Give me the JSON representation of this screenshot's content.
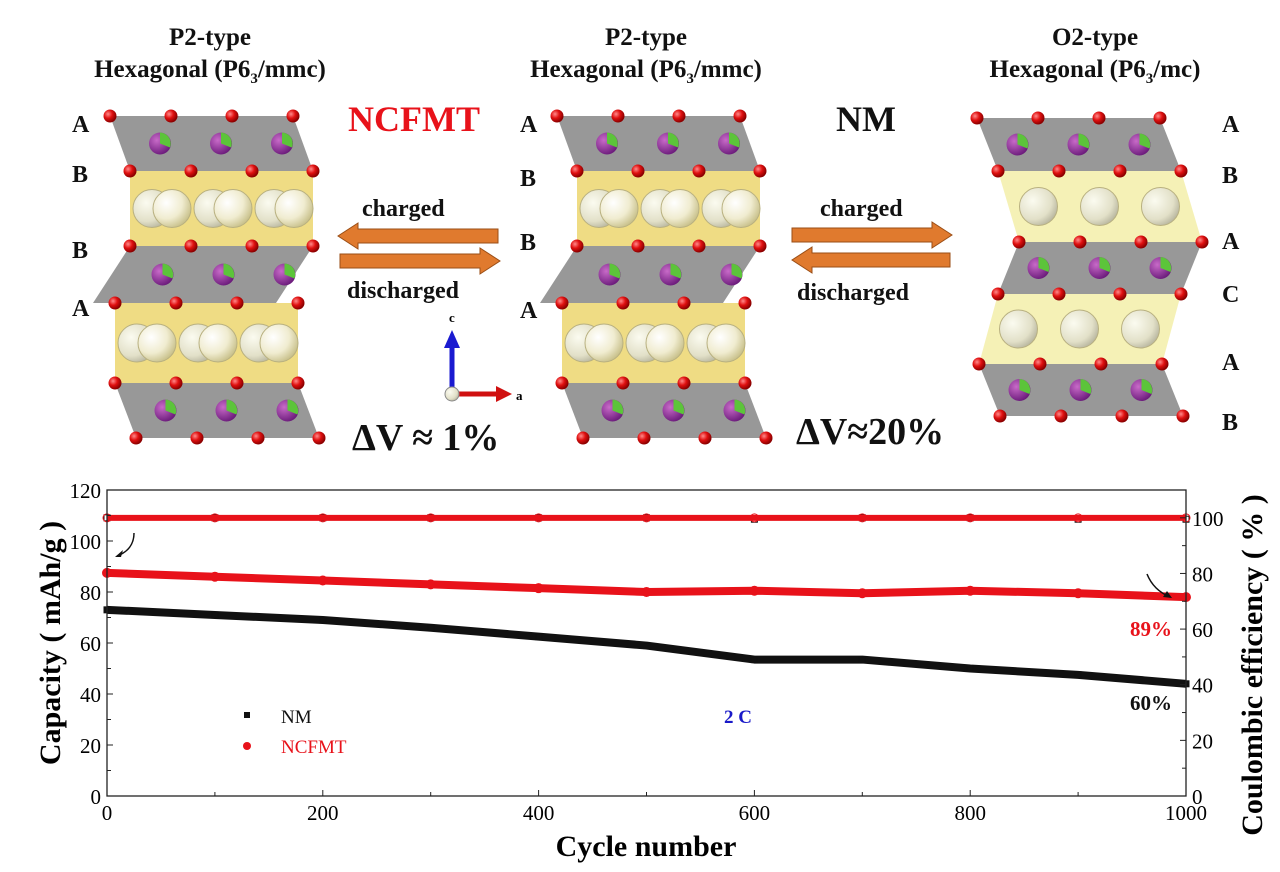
{
  "structures": [
    {
      "type_label": "P2-type",
      "group_label": "Hexagonal (P6",
      "group_sub": "3",
      "group_tail": "/mmc)",
      "layers": [
        "A",
        "B",
        "B",
        "A"
      ]
    },
    {
      "type_label": "P2-type",
      "group_label": "Hexagonal (P6",
      "group_sub": "3",
      "group_tail": "/mmc)",
      "layers": [
        "A",
        "B",
        "B",
        "A"
      ]
    },
    {
      "type_label": "O2-type",
      "group_label": "Hexagonal (P6",
      "group_sub": "3",
      "group_tail": "/mc)",
      "layers": [
        "A",
        "B",
        "A",
        "C",
        "A",
        "B"
      ]
    }
  ],
  "materials": {
    "left": "NCFMT",
    "right": "NM"
  },
  "colors": {
    "ncfmt": "#e8121a",
    "nm": "#111111",
    "rate": "#1a1ac8",
    "arrow": "#e07a2e"
  },
  "transitions": {
    "left": {
      "top": "charged",
      "bottom": "discharged"
    },
    "right": {
      "top": "charged",
      "bottom": "discharged"
    }
  },
  "axes_glyph": {
    "c": "c",
    "a": "a"
  },
  "volume_change": {
    "ncfmt": "ΔV ≈ 1%",
    "nm": "ΔV≈20%"
  },
  "chart_data": {
    "type": "scatter",
    "title": "",
    "xlabel": "Cycle number",
    "ylabel": "Capacity ( mAh/g )",
    "y2label": "Coulombic efficiency ( % )",
    "xlim": [
      0,
      1000
    ],
    "ylim": [
      0,
      120
    ],
    "y2lim": [
      0,
      110
    ],
    "xticks": [
      0,
      200,
      400,
      600,
      800,
      1000
    ],
    "yticks": [
      0,
      20,
      40,
      60,
      80,
      100,
      120
    ],
    "y2ticks": [
      0,
      20,
      40,
      60,
      80,
      100
    ],
    "grid": false,
    "legend": {
      "position": "lower-left",
      "entries": [
        {
          "name": "NM",
          "marker": "square"
        },
        {
          "name": "NCFMT",
          "marker": "circle"
        }
      ]
    },
    "annotations": {
      "rate": "2 C",
      "ncfmt_retention": "89%",
      "nm_retention": "60%"
    },
    "series": [
      {
        "name": "NCFMT capacity",
        "axis": "left",
        "x": [
          0,
          100,
          200,
          300,
          400,
          500,
          600,
          700,
          800,
          900,
          1000
        ],
        "values": [
          87.5,
          86.0,
          84.5,
          83.0,
          81.5,
          80.0,
          80.5,
          79.5,
          80.5,
          79.5,
          78.0
        ]
      },
      {
        "name": "NM capacity",
        "axis": "left",
        "x": [
          0,
          100,
          200,
          300,
          400,
          500,
          600,
          700,
          800,
          900,
          1000
        ],
        "values": [
          73.0,
          71.0,
          69.0,
          66.0,
          62.5,
          59.0,
          53.5,
          53.5,
          50.0,
          47.5,
          44.0
        ]
      },
      {
        "name": "NCFMT coulombic efficiency",
        "axis": "right",
        "x": [
          0,
          100,
          200,
          300,
          400,
          500,
          600,
          700,
          800,
          900,
          1000
        ],
        "values": [
          100,
          100,
          100,
          100,
          100,
          100,
          100,
          100,
          100,
          100,
          100
        ]
      },
      {
        "name": "NM coulombic efficiency",
        "axis": "right",
        "x": [
          0,
          100,
          200,
          300,
          400,
          500,
          600,
          700,
          800,
          900,
          1000
        ],
        "values": [
          100,
          100,
          100,
          100,
          100,
          100,
          99.5,
          100,
          100,
          99.5,
          99.5
        ]
      }
    ]
  }
}
